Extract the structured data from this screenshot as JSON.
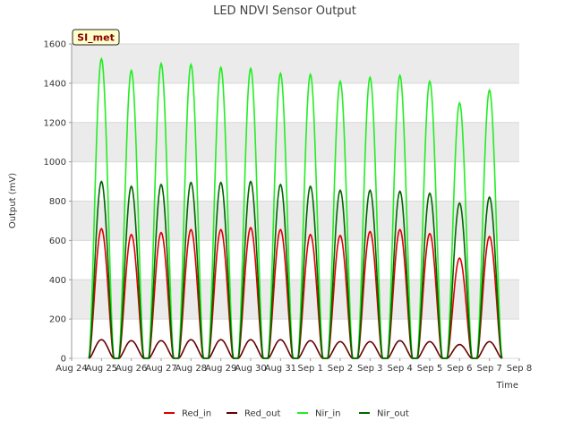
{
  "chart_data": {
    "type": "line",
    "title": "LED NDVI Sensor Output",
    "xlabel": "Time",
    "ylabel": "Output (mV)",
    "ylim": [
      0,
      1600
    ],
    "xlim": [
      "2024-08-24",
      "2024-09-08"
    ],
    "x_tick_labels": [
      "Aug 24",
      "Aug 25",
      "Aug 26",
      "Aug 27",
      "Aug 28",
      "Aug 29",
      "Aug 30",
      "Aug 31",
      "Sep 1",
      "Sep 2",
      "Sep 3",
      "Sep 4",
      "Sep 5",
      "Sep 6",
      "Sep 7",
      "Sep 8"
    ],
    "y_ticks": [
      0,
      200,
      400,
      600,
      800,
      1000,
      1200,
      1400,
      1600
    ],
    "annotation": "SI_met",
    "grid": true,
    "legend_position": "bottom",
    "peak_dates": [
      "2024-08-25",
      "2024-08-26",
      "2024-08-27",
      "2024-08-28",
      "2024-08-29",
      "2024-08-30",
      "2024-08-31",
      "2024-09-01",
      "2024-09-02",
      "2024-09-03",
      "2024-09-04",
      "2024-09-05",
      "2024-09-06",
      "2024-09-07"
    ],
    "series": [
      {
        "name": "Red_in",
        "color": "#dd0000",
        "daily_peaks": [
          660,
          630,
          640,
          655,
          655,
          665,
          655,
          630,
          625,
          645,
          655,
          635,
          510,
          620
        ]
      },
      {
        "name": "Red_out",
        "color": "#660000",
        "daily_peaks": [
          95,
          90,
          90,
          95,
          95,
          95,
          95,
          90,
          85,
          85,
          90,
          85,
          70,
          85
        ]
      },
      {
        "name": "Nir_in",
        "color": "#22ee22",
        "daily_peaks": [
          1525,
          1465,
          1500,
          1495,
          1480,
          1475,
          1450,
          1445,
          1410,
          1430,
          1440,
          1410,
          1300,
          1365
        ]
      },
      {
        "name": "Nir_out",
        "color": "#006600",
        "daily_peaks": [
          900,
          875,
          885,
          895,
          895,
          900,
          885,
          875,
          855,
          855,
          850,
          840,
          790,
          820
        ]
      }
    ]
  }
}
